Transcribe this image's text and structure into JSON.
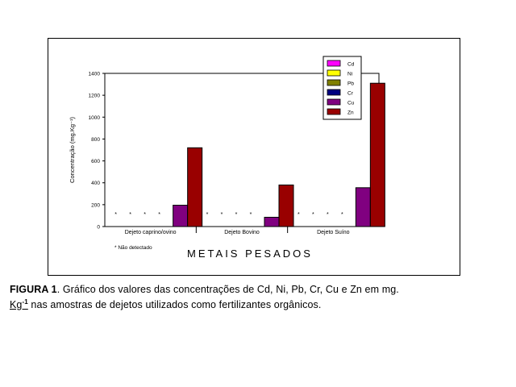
{
  "caption": {
    "label": "FIGURA 1",
    "text1": ". Gráfico dos valores das concentrações de Cd, Ni, Pb, Cr, Cu e Zn em mg.",
    "unit_base": "Kg",
    "unit_exp": "-1",
    "text2": " nas amostras de dejetos utilizados como fertilizantes orgânicos."
  },
  "colors": {
    "Cd": "#ff00ff",
    "Ni": "#ffff00",
    "Pb": "#808000",
    "Cr": "#000080",
    "Cu": "#800080",
    "Zn": "#990000"
  },
  "chart_data": {
    "type": "bar",
    "categories": [
      "Dejeto caprino/ovino",
      "Dejeto Bovino",
      "Dejeto Suíno"
    ],
    "series": [
      {
        "name": "Cd",
        "values": [
          null,
          null,
          null
        ]
      },
      {
        "name": "Ni",
        "values": [
          null,
          null,
          null
        ]
      },
      {
        "name": "Pb",
        "values": [
          null,
          null,
          null
        ]
      },
      {
        "name": "Cr",
        "values": [
          null,
          null,
          null
        ]
      },
      {
        "name": "Cu",
        "values": [
          195,
          85,
          355
        ]
      },
      {
        "name": "Zn",
        "values": [
          720,
          380,
          1310
        ]
      }
    ],
    "not_detected_marker": "*",
    "annotation": "* Não detectado",
    "title": "",
    "xlabel": "METAIS PESADOS",
    "ylabel": "Concentração (mg.Kg⁻¹)",
    "ylim": [
      0,
      1400
    ],
    "yticks": [
      0,
      200,
      400,
      600,
      800,
      1000,
      1200,
      1400
    ],
    "grid": false,
    "legend_position": "top-right"
  }
}
